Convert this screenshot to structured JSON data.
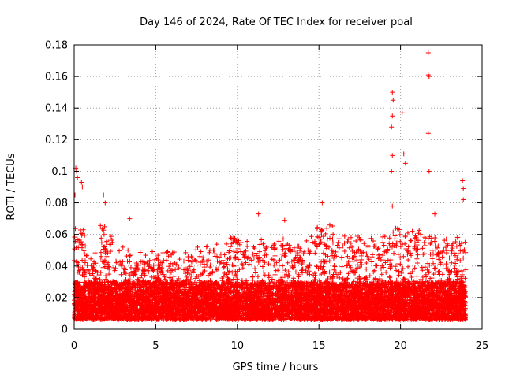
{
  "chart_data": {
    "type": "scatter",
    "title": "Day 146 of 2024, Rate Of TEC Index for receiver poal",
    "xlabel": "GPS time / hours",
    "ylabel": "ROTI / TECUs",
    "xlim": [
      0,
      25
    ],
    "ylim": [
      0,
      0.18
    ],
    "xticks": [
      0,
      5,
      10,
      15,
      20,
      25
    ],
    "xtick_labels": [
      "0",
      "5",
      "10",
      "15",
      "20",
      "25"
    ],
    "yticks": [
      0,
      0.02,
      0.04,
      0.06,
      0.08,
      0.1,
      0.12,
      0.14,
      0.16,
      0.18
    ],
    "ytick_labels": [
      "0",
      "0.02",
      "0.04",
      "0.06",
      "0.08",
      "0.1",
      "0.12",
      "0.14",
      "0.16",
      "0.18"
    ],
    "grid": true,
    "marker": "+",
    "color": "#ff0000",
    "series": [
      {
        "name": "ROTI",
        "notable_points": [
          {
            "x": 0.1,
            "y": 0.102
          },
          {
            "x": 0.15,
            "y": 0.1
          },
          {
            "x": 0.05,
            "y": 0.085
          },
          {
            "x": 0.2,
            "y": 0.096
          },
          {
            "x": 0.45,
            "y": 0.093
          },
          {
            "x": 0.5,
            "y": 0.09
          },
          {
            "x": 1.8,
            "y": 0.085
          },
          {
            "x": 1.9,
            "y": 0.08
          },
          {
            "x": 3.4,
            "y": 0.07
          },
          {
            "x": 11.3,
            "y": 0.073
          },
          {
            "x": 12.9,
            "y": 0.069
          },
          {
            "x": 15.2,
            "y": 0.08
          },
          {
            "x": 19.5,
            "y": 0.15
          },
          {
            "x": 19.55,
            "y": 0.145
          },
          {
            "x": 19.5,
            "y": 0.135
          },
          {
            "x": 19.45,
            "y": 0.128
          },
          {
            "x": 19.5,
            "y": 0.11
          },
          {
            "x": 19.45,
            "y": 0.1
          },
          {
            "x": 19.5,
            "y": 0.078
          },
          {
            "x": 20.1,
            "y": 0.137
          },
          {
            "x": 20.2,
            "y": 0.111
          },
          {
            "x": 20.3,
            "y": 0.105
          },
          {
            "x": 21.7,
            "y": 0.175
          },
          {
            "x": 21.7,
            "y": 0.161
          },
          {
            "x": 21.75,
            "y": 0.16
          },
          {
            "x": 21.7,
            "y": 0.124
          },
          {
            "x": 21.75,
            "y": 0.1
          },
          {
            "x": 22.1,
            "y": 0.073
          },
          {
            "x": 23.8,
            "y": 0.094
          },
          {
            "x": 23.85,
            "y": 0.089
          },
          {
            "x": 23.85,
            "y": 0.082
          }
        ]
      }
    ]
  }
}
